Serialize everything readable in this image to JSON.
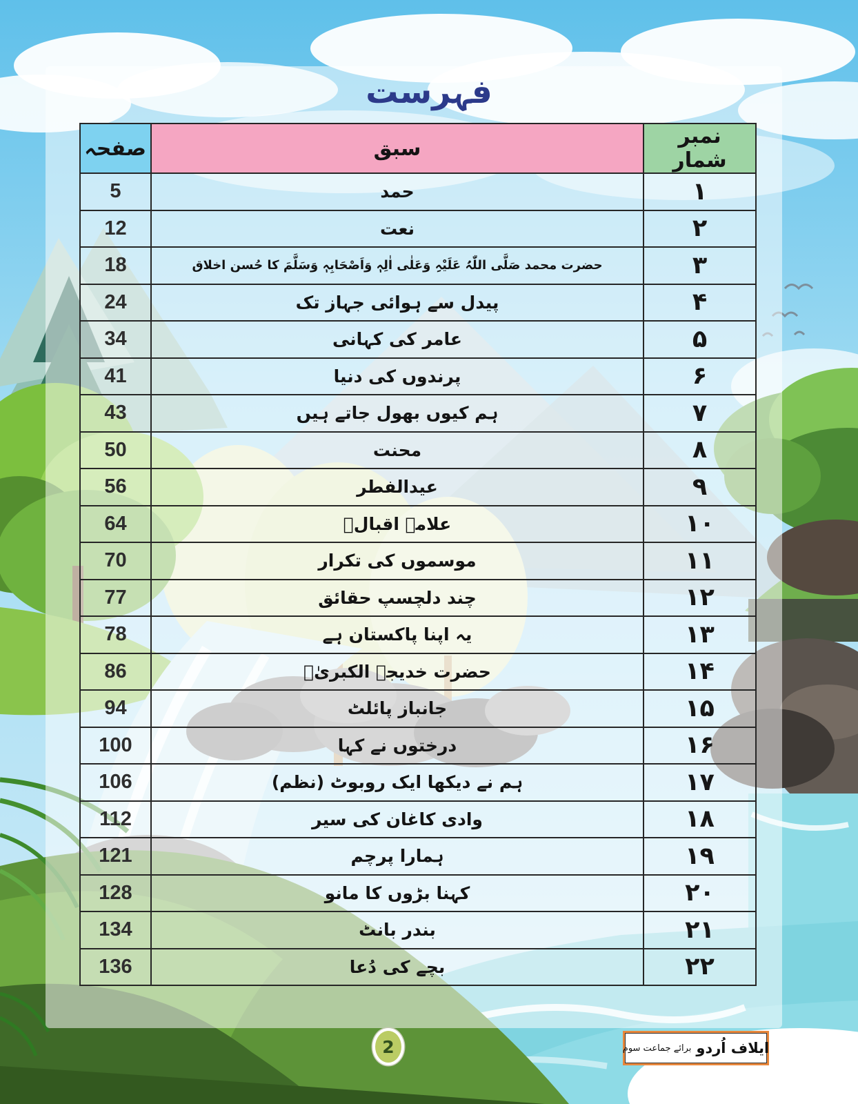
{
  "page": {
    "title": "فہرست"
  },
  "table": {
    "headers": {
      "serial": "نمبر شمار",
      "lesson": "سبق",
      "page": "صفحہ"
    },
    "rows": [
      {
        "serial": "۱",
        "lesson": "حمد",
        "page": "5"
      },
      {
        "serial": "۲",
        "lesson": "نعت",
        "page": "12"
      },
      {
        "serial": "۳",
        "lesson": "حضرت محمد صَلَّی اللّٰہُ عَلَیْہِ وَعَلٰی اٰلِہٖ وَاَصْحَابِہٖ وَسَلَّمَ کا حُسن اخلاق",
        "page": "18"
      },
      {
        "serial": "۴",
        "lesson": "پیدل سے ہوائی جہاز تک",
        "page": "24"
      },
      {
        "serial": "۵",
        "lesson": "عامر کی کہانی",
        "page": "34"
      },
      {
        "serial": "۶",
        "lesson": "پرندوں کی دنیا",
        "page": "41"
      },
      {
        "serial": "۷",
        "lesson": "ہم کیوں بھول جاتے ہیں",
        "page": "43"
      },
      {
        "serial": "۸",
        "lesson": "محنت",
        "page": "50"
      },
      {
        "serial": "۹",
        "lesson": "عیدالفطر",
        "page": "56"
      },
      {
        "serial": "۱۰",
        "lesson": "علامہ اقبالؒ",
        "page": "64"
      },
      {
        "serial": "۱۱",
        "lesson": "موسموں کی تکرار",
        "page": "70"
      },
      {
        "serial": "۱۲",
        "lesson": "چند دلچسپ حقائق",
        "page": "77"
      },
      {
        "serial": "۱۳",
        "lesson": "یہ اپنا پاکستان ہے",
        "page": "78"
      },
      {
        "serial": "۱۴",
        "lesson": "حضرت خدیجۃ الکبریٰؓ",
        "page": "86"
      },
      {
        "serial": "۱۵",
        "lesson": "جانباز پائلٹ",
        "page": "94"
      },
      {
        "serial": "۱۶",
        "lesson": "درختوں نے کہا",
        "page": "100"
      },
      {
        "serial": "۱۷",
        "lesson": "ہم نے دیکھا ایک روبوٹ (نظم)",
        "page": "106"
      },
      {
        "serial": "۱۸",
        "lesson": "وادی کاغان کی سیر",
        "page": "112"
      },
      {
        "serial": "۱۹",
        "lesson": "ہمارا پرچم",
        "page": "121"
      },
      {
        "serial": "۲۰",
        "lesson": "کہنا بڑوں کا مانو",
        "page": "128"
      },
      {
        "serial": "۲۱",
        "lesson": "بندر بانٹ",
        "page": "134"
      },
      {
        "serial": "۲۲",
        "lesson": "بچے کی دُعا",
        "page": "136"
      }
    ]
  },
  "footer": {
    "page_number": "2",
    "book_title": "ایلاف اُردو",
    "book_subtitle": "برائے جماعت سوم"
  },
  "colors": {
    "header_pink": "#f5a6c2",
    "header_blue": "#7ed2f0",
    "header_green": "#9ed4a4",
    "title_navy": "#2c3a8a",
    "footer_accent_orange": "#e8873b",
    "badge_olive": "#bacc64"
  }
}
